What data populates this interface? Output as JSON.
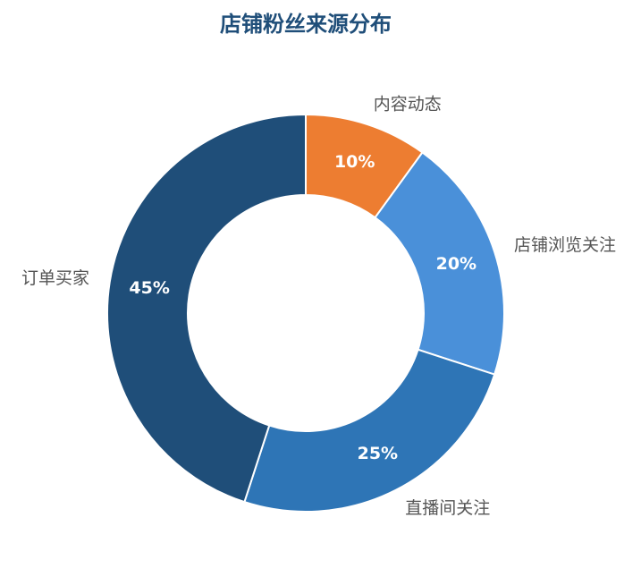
{
  "chart_data": {
    "type": "donut",
    "title": "店铺粉丝来源分布",
    "categories": [
      "内容动态",
      "店铺浏览关注",
      "直播间关注",
      "订单买家"
    ],
    "values": [
      10,
      20,
      25,
      45
    ],
    "value_labels": [
      "10%",
      "20%",
      "25%",
      "45%"
    ],
    "colors": [
      "#ED7D31",
      "#4A90D9",
      "#2E75B6",
      "#1F4E79"
    ]
  }
}
